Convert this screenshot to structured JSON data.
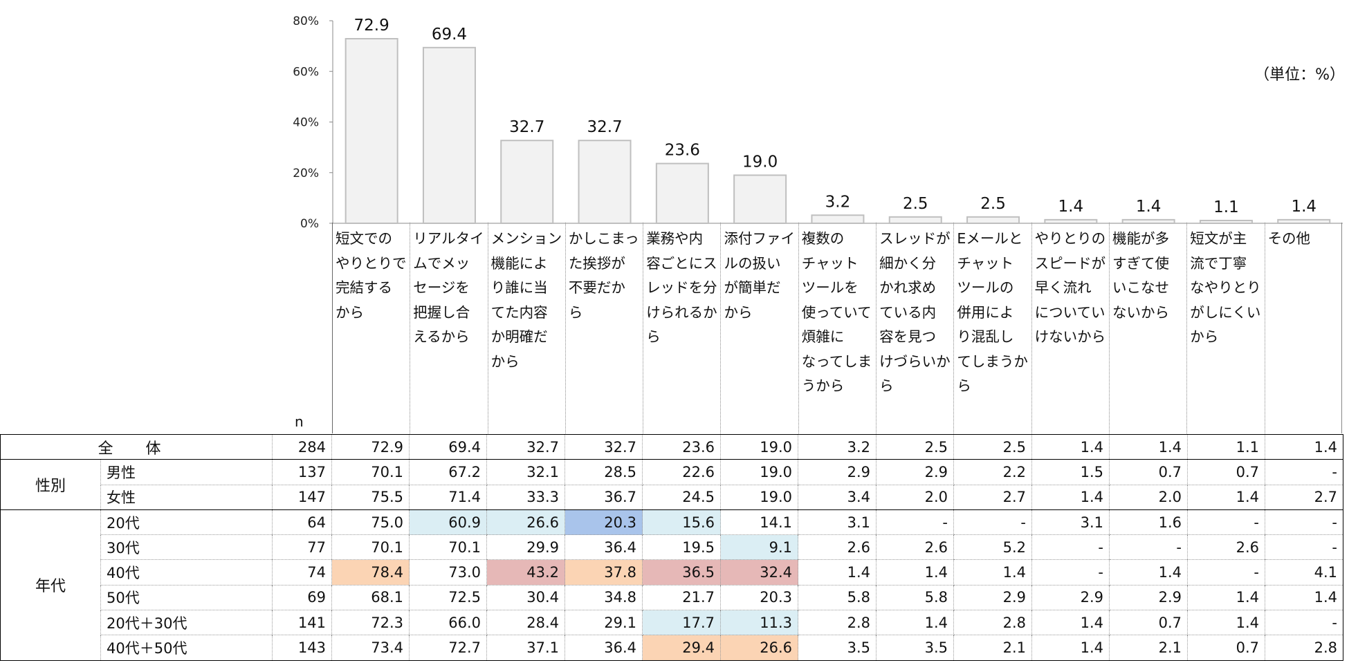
{
  "unit_label": "（単位：%）",
  "n_label": "n",
  "chart_data": {
    "type": "bar",
    "ylim": [
      0,
      80
    ],
    "yticks": [
      "0%",
      "20%",
      "40%",
      "60%",
      "80%"
    ],
    "categories": [
      "短文での\nやりとりで\n完結する\nから",
      "リアルタイ\nムでメッ\nセージを\n把握し合\nえるから",
      "メンション\n機能によ\nり誰に当\nてた内容\nか明確だ\nから",
      "かしこまっ\nた挨拶が\n不要だか\nら",
      "業務や内\n容ごとにス\nレッドを分\nけられるか\nら",
      "添付ファイ\nルの扱い\nが簡単だ\nから",
      "複数の\nチャット\nツールを\n使っていて\n煩雑に\nなってしま\nうから",
      "スレッドが\n細かく分\nかれ求め\nている内\n容を見つ\nけづらいか\nら",
      "Eメールと\nチャット\nツールの\n併用によ\nり混乱し\nてしまうか\nら",
      "やりとりの\nスピードが\n早く流れ\nについてい\nけないから",
      "機能が多\nすぎて使\nいこなせ\nないから",
      "短文が主\n流で丁寧\nなやりとり\nがしにくい\nから",
      "その他"
    ],
    "values": [
      72.9,
      69.4,
      32.7,
      32.7,
      23.6,
      19.0,
      3.2,
      2.5,
      2.5,
      1.4,
      1.4,
      1.1,
      1.4
    ],
    "value_labels": [
      "72.9",
      "69.4",
      "32.7",
      "32.7",
      "23.6",
      "19.0",
      "3.2",
      "2.5",
      "2.5",
      "1.4",
      "1.4",
      "1.1",
      "1.4"
    ],
    "bar_color": "#f2f2f2",
    "bar_edge": "#bfbfbf"
  },
  "table": {
    "total_label": "全 体",
    "groups": [
      {
        "name": "性別",
        "rows": [
          {
            "label": "男性",
            "n": "137",
            "cells": [
              "70.1",
              "67.2",
              "32.1",
              "28.5",
              "22.6",
              "19.0",
              "2.9",
              "2.9",
              "2.2",
              "1.5",
              "0.7",
              "0.7",
              "-"
            ]
          },
          {
            "label": "女性",
            "n": "147",
            "cells": [
              "75.5",
              "71.4",
              "33.3",
              "36.7",
              "24.5",
              "19.0",
              "3.4",
              "2.0",
              "2.7",
              "1.4",
              "2.0",
              "1.4",
              "2.7"
            ]
          }
        ]
      },
      {
        "name": "年代",
        "rows": [
          {
            "label": "20代",
            "n": "64",
            "cells": [
              "75.0",
              "60.9",
              "26.6",
              "20.3",
              "15.6",
              "14.1",
              "3.1",
              "-",
              "-",
              "3.1",
              "1.6",
              "-",
              "-"
            ]
          },
          {
            "label": "30代",
            "n": "77",
            "cells": [
              "70.1",
              "70.1",
              "29.9",
              "36.4",
              "19.5",
              "9.1",
              "2.6",
              "2.6",
              "5.2",
              "-",
              "-",
              "2.6",
              "-"
            ]
          },
          {
            "label": "40代",
            "n": "74",
            "cells": [
              "78.4",
              "73.0",
              "43.2",
              "37.8",
              "36.5",
              "32.4",
              "1.4",
              "1.4",
              "1.4",
              "-",
              "1.4",
              "-",
              "4.1"
            ]
          },
          {
            "label": "50代",
            "n": "69",
            "cells": [
              "68.1",
              "72.5",
              "30.4",
              "34.8",
              "21.7",
              "20.3",
              "5.8",
              "5.8",
              "2.9",
              "2.9",
              "2.9",
              "1.4",
              "1.4"
            ]
          },
          {
            "label": "20代＋30代",
            "n": "141",
            "cells": [
              "72.3",
              "66.0",
              "28.4",
              "29.1",
              "17.7",
              "11.3",
              "2.8",
              "1.4",
              "2.8",
              "1.4",
              "0.7",
              "1.4",
              "-"
            ]
          },
          {
            "label": "40代＋50代",
            "n": "143",
            "cells": [
              "73.4",
              "72.7",
              "37.1",
              "36.4",
              "29.4",
              "26.6",
              "3.5",
              "3.5",
              "2.1",
              "1.4",
              "2.1",
              "0.7",
              "2.8"
            ]
          }
        ]
      }
    ],
    "total_row": {
      "n": "284",
      "cells": [
        "72.9",
        "69.4",
        "32.7",
        "32.7",
        "23.6",
        "19.0",
        "3.2",
        "2.5",
        "2.5",
        "1.4",
        "1.4",
        "1.1",
        "1.4"
      ]
    },
    "highlight_colors": {
      "light_blue": "#dbeef4",
      "blue": "#a9c4eb",
      "orange": "#fbd4b4",
      "red": "#e6b8b7"
    },
    "highlights": {
      "2": {
        "1": "light_blue",
        "2": "light_blue",
        "3": "blue",
        "4": "light_blue"
      },
      "3": {
        "5": "light_blue"
      },
      "4": {
        "0": "orange",
        "2": "red",
        "3": "orange",
        "4": "red",
        "5": "red"
      },
      "6": {
        "4": "light_blue",
        "5": "light_blue"
      },
      "7": {
        "4": "orange",
        "5": "orange"
      }
    }
  }
}
